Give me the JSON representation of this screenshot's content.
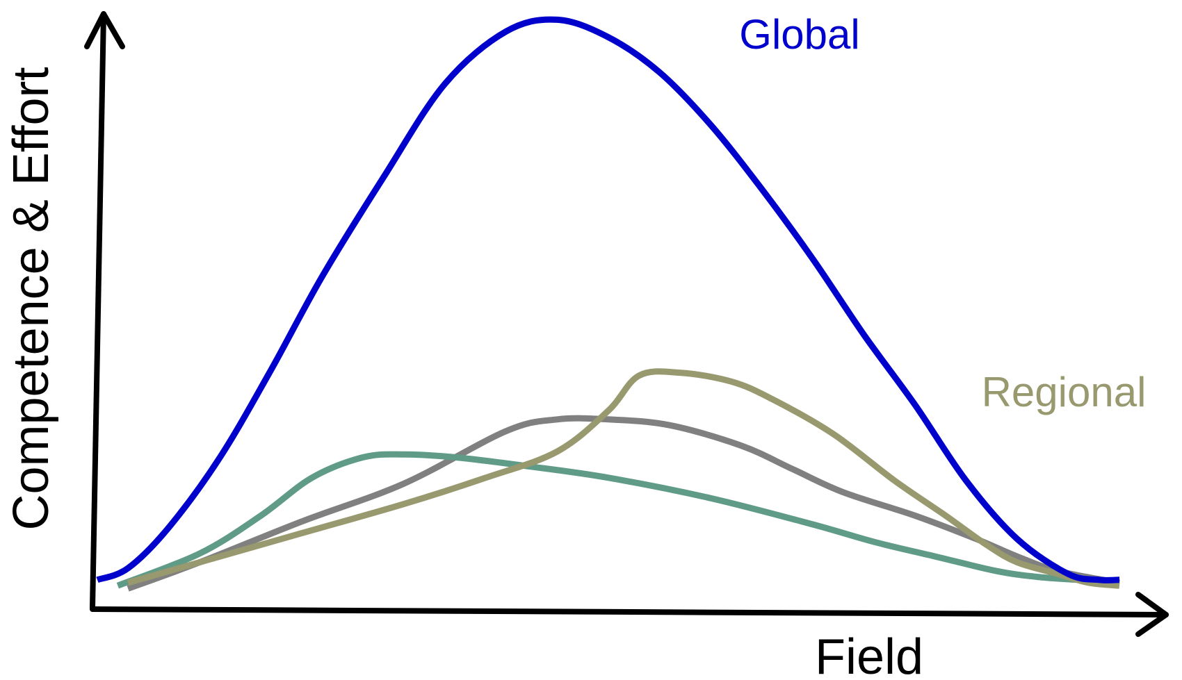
{
  "chart_data": {
    "type": "line",
    "xlabel": "Field",
    "ylabel": "Competence & Effort",
    "xlim": [
      0,
      100
    ],
    "ylim": [
      0,
      100
    ],
    "grid": false,
    "ticks": false,
    "series": [
      {
        "name": "Global",
        "color": "#0000cc",
        "label_visible": true,
        "x": [
          0,
          3,
          7,
          12,
          17,
          22,
          28,
          34,
          40,
          45,
          50,
          55,
          60,
          65,
          70,
          75,
          80,
          85,
          90,
          95,
          98,
          100
        ],
        "y": [
          3,
          5,
          12,
          24,
          39,
          55,
          72,
          88,
          97,
          99,
          96,
          90,
          81,
          70,
          58,
          45,
          33,
          20,
          10,
          4,
          3,
          3
        ]
      },
      {
        "name": "Regional",
        "color": "#99996f",
        "label_visible": true,
        "x": [
          3,
          10,
          20,
          30,
          38,
          45,
          50,
          53,
          57,
          62,
          66,
          72,
          78,
          83,
          87,
          90,
          94,
          97,
          100
        ],
        "y": [
          2.5,
          6,
          11,
          16,
          20.5,
          25,
          32,
          38,
          38.5,
          37,
          34,
          28,
          20,
          14,
          9,
          6,
          4,
          2.5,
          2
        ]
      },
      {
        "name": "",
        "color": "#808080",
        "label_visible": false,
        "x": [
          3,
          10,
          20,
          30,
          40,
          45,
          50,
          56,
          63,
          68,
          73,
          80,
          86,
          90,
          94,
          100
        ],
        "y": [
          1.5,
          6,
          13,
          19.5,
          28.5,
          30.5,
          30.5,
          29.5,
          26,
          22,
          18,
          14,
          10,
          7,
          4.5,
          2.5
        ]
      },
      {
        "name": "",
        "color": "#5f9b87",
        "label_visible": false,
        "x": [
          2,
          10,
          16,
          21,
          26,
          30,
          35,
          42,
          50,
          60,
          70,
          76,
          82,
          88,
          92,
          96
        ],
        "y": [
          2,
          7.5,
          14,
          20.5,
          24,
          24.5,
          24,
          22.5,
          20.5,
          17,
          12.5,
          9.5,
          7,
          4.5,
          3.5,
          3
        ]
      }
    ]
  }
}
